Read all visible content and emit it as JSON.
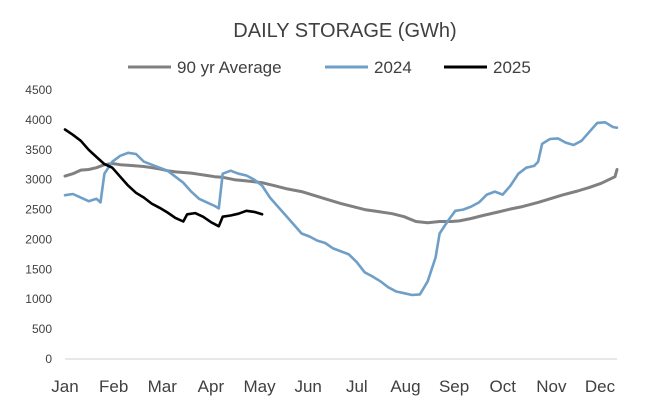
{
  "chart_data": {
    "type": "line",
    "title": "DAILY STORAGE (GWh)",
    "xlabel": "",
    "ylabel": "",
    "ylim": [
      0,
      4500
    ],
    "yticks": [
      0,
      500,
      1000,
      1500,
      2000,
      2500,
      3000,
      3500,
      4000,
      4500
    ],
    "categories": [
      "Jan",
      "Feb",
      "Mar",
      "Apr",
      "May",
      "Jun",
      "Jul",
      "Aug",
      "Sep",
      "Oct",
      "Nov",
      "Dec"
    ],
    "grid": false,
    "legend_position": "top",
    "series": [
      {
        "name": "90 yr Average",
        "color": "#808080",
        "points": [
          [
            0,
            3060
          ],
          [
            0.2,
            3100
          ],
          [
            0.4,
            3160
          ],
          [
            0.6,
            3170
          ],
          [
            0.8,
            3200
          ],
          [
            1.0,
            3250
          ],
          [
            1.2,
            3270
          ],
          [
            1.4,
            3250
          ],
          [
            1.6,
            3240
          ],
          [
            1.8,
            3230
          ],
          [
            2.0,
            3220
          ],
          [
            2.2,
            3200
          ],
          [
            2.4,
            3180
          ],
          [
            2.6,
            3150
          ],
          [
            2.8,
            3130
          ],
          [
            3.0,
            3120
          ],
          [
            3.2,
            3110
          ],
          [
            3.4,
            3090
          ],
          [
            3.6,
            3070
          ],
          [
            3.8,
            3050
          ],
          [
            4.0,
            3040
          ],
          [
            4.3,
            3000
          ],
          [
            4.6,
            2980
          ],
          [
            5.0,
            2950
          ],
          [
            5.3,
            2900
          ],
          [
            5.6,
            2850
          ],
          [
            6.0,
            2800
          ],
          [
            6.3,
            2740
          ],
          [
            6.6,
            2680
          ],
          [
            7.0,
            2600
          ],
          [
            7.3,
            2550
          ],
          [
            7.6,
            2500
          ],
          [
            8.0,
            2460
          ],
          [
            8.3,
            2430
          ],
          [
            8.6,
            2380
          ],
          [
            8.9,
            2300
          ],
          [
            9.2,
            2280
          ],
          [
            9.5,
            2300
          ],
          [
            9.8,
            2300
          ],
          [
            10.0,
            2310
          ],
          [
            10.3,
            2350
          ],
          [
            10.6,
            2400
          ],
          [
            11.0,
            2460
          ],
          [
            11.3,
            2510
          ],
          [
            11.6,
            2550
          ],
          [
            12.0,
            2620
          ],
          [
            12.3,
            2680
          ],
          [
            12.6,
            2740
          ],
          [
            13.0,
            2810
          ],
          [
            13.3,
            2870
          ],
          [
            13.6,
            2940
          ],
          [
            13.95,
            3050
          ],
          [
            14.0,
            3170
          ]
        ]
      },
      {
        "name": "2024",
        "color": "#6f9fc7",
        "points": [
          [
            0,
            2740
          ],
          [
            0.2,
            2760
          ],
          [
            0.4,
            2700
          ],
          [
            0.6,
            2640
          ],
          [
            0.8,
            2680
          ],
          [
            0.9,
            2620
          ],
          [
            1.0,
            3100
          ],
          [
            1.2,
            3300
          ],
          [
            1.4,
            3400
          ],
          [
            1.6,
            3450
          ],
          [
            1.8,
            3430
          ],
          [
            2.0,
            3300
          ],
          [
            2.2,
            3250
          ],
          [
            2.4,
            3200
          ],
          [
            2.6,
            3150
          ],
          [
            2.8,
            3050
          ],
          [
            3.0,
            2950
          ],
          [
            3.2,
            2800
          ],
          [
            3.4,
            2680
          ],
          [
            3.6,
            2620
          ],
          [
            3.8,
            2560
          ],
          [
            3.9,
            2520
          ],
          [
            4.0,
            3100
          ],
          [
            4.2,
            3150
          ],
          [
            4.4,
            3100
          ],
          [
            4.6,
            3070
          ],
          [
            4.8,
            3000
          ],
          [
            5.0,
            2900
          ],
          [
            5.2,
            2700
          ],
          [
            5.4,
            2550
          ],
          [
            5.6,
            2400
          ],
          [
            5.8,
            2250
          ],
          [
            6.0,
            2100
          ],
          [
            6.2,
            2050
          ],
          [
            6.4,
            1980
          ],
          [
            6.6,
            1940
          ],
          [
            6.8,
            1850
          ],
          [
            7.0,
            1800
          ],
          [
            7.2,
            1750
          ],
          [
            7.4,
            1620
          ],
          [
            7.6,
            1450
          ],
          [
            7.8,
            1380
          ],
          [
            8.0,
            1300
          ],
          [
            8.2,
            1200
          ],
          [
            8.4,
            1130
          ],
          [
            8.6,
            1100
          ],
          [
            8.8,
            1070
          ],
          [
            9.0,
            1080
          ],
          [
            9.2,
            1300
          ],
          [
            9.4,
            1700
          ],
          [
            9.5,
            2100
          ],
          [
            9.7,
            2300
          ],
          [
            9.9,
            2480
          ],
          [
            10.1,
            2500
          ],
          [
            10.3,
            2550
          ],
          [
            10.5,
            2620
          ],
          [
            10.7,
            2750
          ],
          [
            10.9,
            2800
          ],
          [
            11.1,
            2750
          ],
          [
            11.3,
            2900
          ],
          [
            11.5,
            3100
          ],
          [
            11.7,
            3200
          ],
          [
            11.9,
            3230
          ],
          [
            12.0,
            3300
          ],
          [
            12.1,
            3600
          ],
          [
            12.3,
            3680
          ],
          [
            12.5,
            3690
          ],
          [
            12.7,
            3620
          ],
          [
            12.9,
            3580
          ],
          [
            13.1,
            3650
          ],
          [
            13.3,
            3800
          ],
          [
            13.5,
            3950
          ],
          [
            13.7,
            3960
          ],
          [
            13.9,
            3880
          ],
          [
            14.0,
            3870
          ]
        ]
      },
      {
        "name": "2025",
        "color": "#000000",
        "points": [
          [
            0,
            3840
          ],
          [
            0.2,
            3750
          ],
          [
            0.4,
            3650
          ],
          [
            0.6,
            3500
          ],
          [
            0.8,
            3380
          ],
          [
            1.0,
            3260
          ],
          [
            1.2,
            3200
          ],
          [
            1.4,
            3050
          ],
          [
            1.6,
            2900
          ],
          [
            1.8,
            2780
          ],
          [
            2.0,
            2700
          ],
          [
            2.2,
            2600
          ],
          [
            2.4,
            2530
          ],
          [
            2.6,
            2450
          ],
          [
            2.8,
            2360
          ],
          [
            3.0,
            2300
          ],
          [
            3.1,
            2420
          ],
          [
            3.3,
            2440
          ],
          [
            3.5,
            2380
          ],
          [
            3.7,
            2290
          ],
          [
            3.9,
            2220
          ],
          [
            4.0,
            2380
          ],
          [
            4.2,
            2400
          ],
          [
            4.4,
            2430
          ],
          [
            4.6,
            2480
          ],
          [
            4.8,
            2460
          ],
          [
            5.0,
            2420
          ]
        ]
      }
    ]
  }
}
